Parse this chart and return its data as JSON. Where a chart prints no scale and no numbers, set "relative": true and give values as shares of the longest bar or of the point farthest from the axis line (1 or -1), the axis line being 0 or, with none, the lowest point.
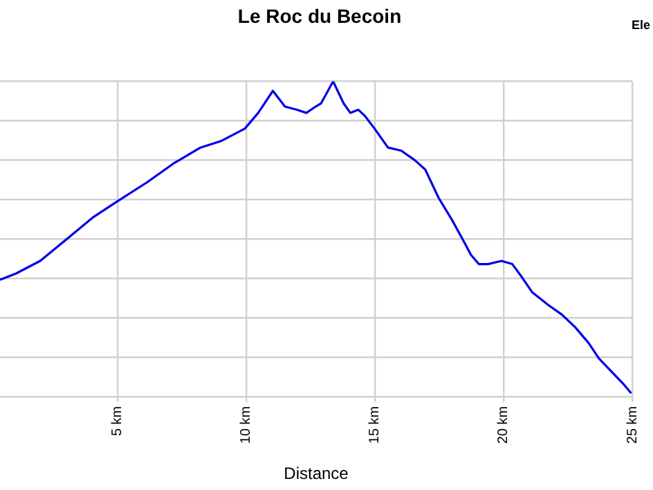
{
  "chart_data": {
    "type": "line",
    "title": "Le Roc du Becoin",
    "xlabel": "Distance",
    "relative": true,
    "grid": true,
    "marker": "none",
    "line_style": "solid",
    "legend": false,
    "tick_labels": "x",
    "annotations": [
      "Ele"
    ],
    "xlim": [
      0.44,
      25
    ],
    "xticks": [
      {
        "value": 5,
        "label": "5 km"
      },
      {
        "value": 10,
        "label": "10 km"
      },
      {
        "value": 15,
        "label": "15 km"
      },
      {
        "value": 20,
        "label": "20 km"
      },
      {
        "value": 25,
        "label": "25 km"
      }
    ],
    "series": [
      {
        "color": "#0000e6",
        "x": [
          0.44,
          1.06,
          2.0,
          3.04,
          4.08,
          5.01,
          6.16,
          7.19,
          8.23,
          9.01,
          9.95,
          10.47,
          11.04,
          11.51,
          11.97,
          12.34,
          12.7,
          12.91,
          13.38,
          13.79,
          14.05,
          14.36,
          14.62,
          14.99,
          15.51,
          16.03,
          16.55,
          16.96,
          17.48,
          18.0,
          18.47,
          18.73,
          19.04,
          19.4,
          19.92,
          20.34,
          20.7,
          21.12,
          21.74,
          22.26,
          22.78,
          23.3,
          23.71,
          24.18,
          24.65,
          24.96
        ],
        "values": [
          0.37,
          0.39,
          0.43,
          0.5,
          0.57,
          0.62,
          0.68,
          0.74,
          0.79,
          0.81,
          0.85,
          0.9,
          0.97,
          0.92,
          0.91,
          0.9,
          0.92,
          0.93,
          1.0,
          0.93,
          0.9,
          0.91,
          0.89,
          0.85,
          0.79,
          0.78,
          0.75,
          0.72,
          0.63,
          0.56,
          0.49,
          0.45,
          0.42,
          0.42,
          0.43,
          0.42,
          0.38,
          0.33,
          0.29,
          0.26,
          0.22,
          0.17,
          0.12,
          0.08,
          0.04,
          0.01
        ]
      }
    ]
  }
}
